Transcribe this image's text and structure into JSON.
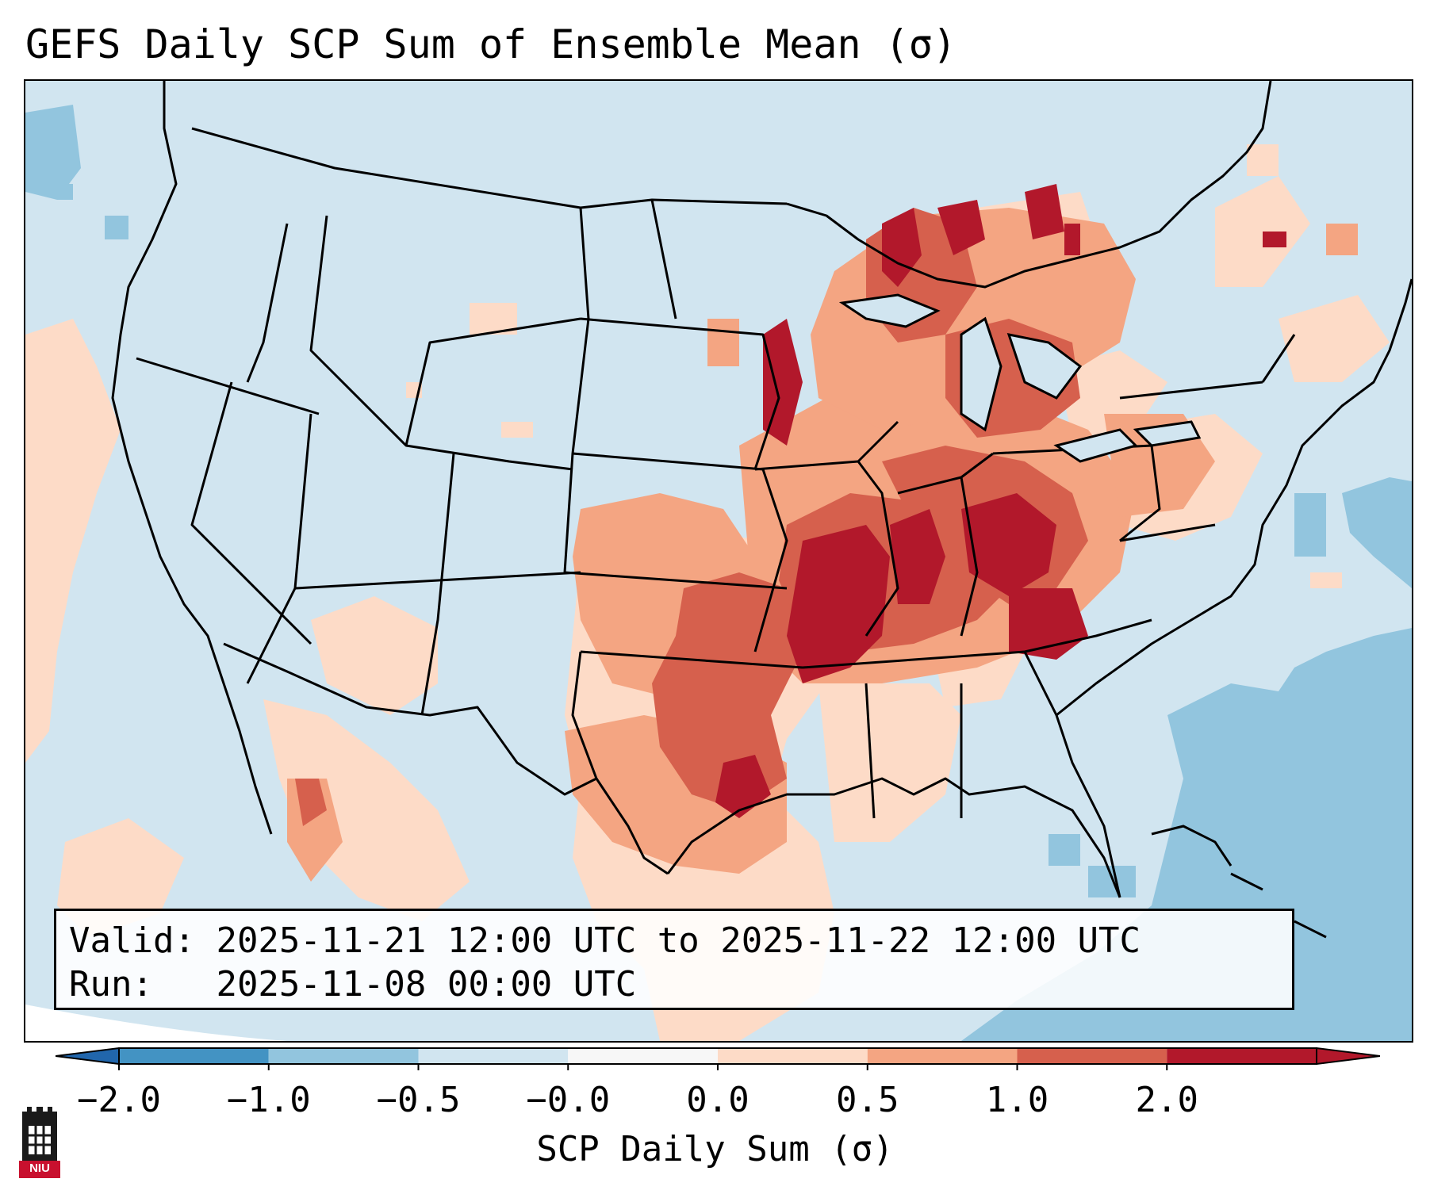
{
  "title": "GEFS Daily SCP Sum of Ensemble Mean (σ)",
  "info": {
    "valid_label": "Valid:",
    "valid_value": "2025-11-21 12:00 UTC to 2025-11-22 12:00 UTC",
    "run_label": "Run:",
    "run_value": "2025-11-08 00:00 UTC"
  },
  "colorbar": {
    "label": "SCP Daily Sum (σ)",
    "ticks": [
      "−2.0",
      "−1.0",
      "−0.5",
      "−0.0",
      "0.0",
      "0.5",
      "1.0",
      "2.0"
    ],
    "bin_colors": [
      "#4393c3",
      "#92c5de",
      "#d1e5f0",
      "#f7f7f7",
      "#fddbc7",
      "#f4a582",
      "#d6604d",
      "#b2182b"
    ],
    "under_color": "#2166ac",
    "over_color": "#b2182b"
  },
  "map": {
    "region": "Contiguous United States",
    "background_color": "#d1e5f0",
    "negative_anomaly_color": "#92c5de",
    "border_color": "#000000"
  },
  "logo": {
    "text": "NIU"
  }
}
